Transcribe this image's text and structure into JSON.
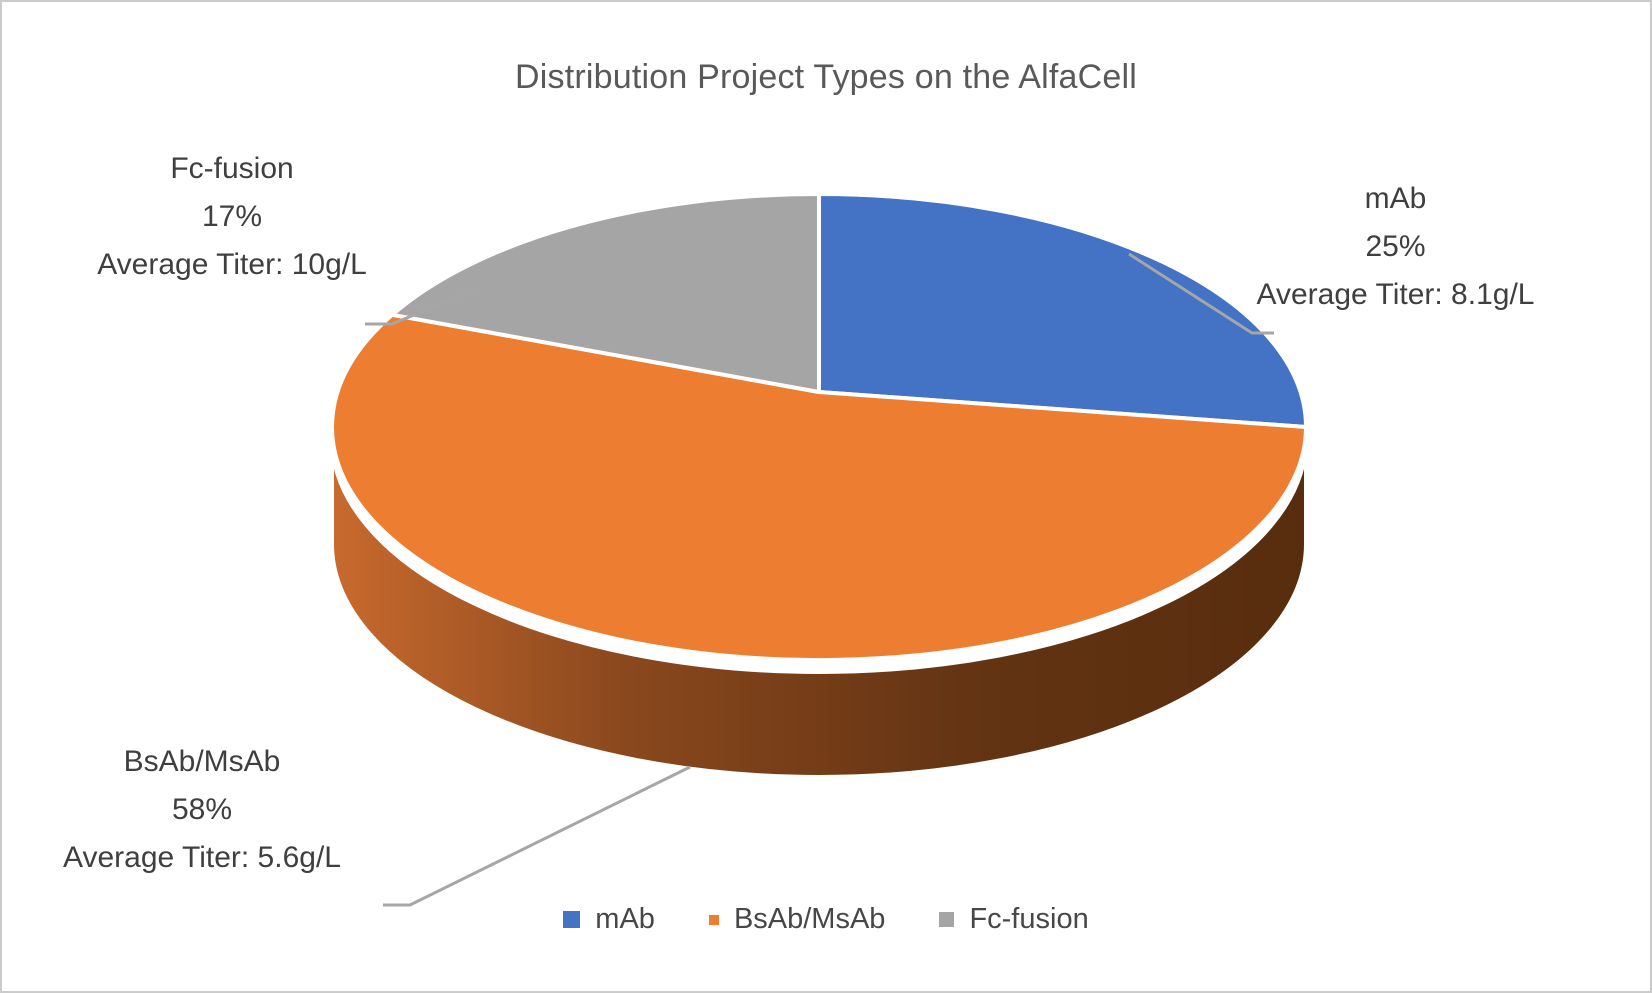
{
  "chart_data": {
    "type": "pie",
    "style": "3d",
    "title": "Distribution Project Types on the AlfaCell",
    "categories": [
      "mAb",
      "BsAb/MsAb",
      "Fc-fusion"
    ],
    "values": [
      25,
      58,
      17
    ],
    "units": "percent",
    "start_angle": "12 o'clock",
    "direction": "clockwise",
    "legend_position": "bottom",
    "series": [
      {
        "name": "mAb",
        "percent": 25,
        "percent_label": "25%",
        "titer_label": "Average Titer: 8.1g/L",
        "average_titer_g_per_L": 8.1,
        "color": "#4472C4"
      },
      {
        "name": "BsAb/MsAb",
        "percent": 58,
        "percent_label": "58%",
        "titer_label": "Average Titer: 5.6g/L",
        "average_titer_g_per_L": 5.6,
        "color": "#ED7D31"
      },
      {
        "name": "Fc-fusion",
        "percent": 17,
        "percent_label": "17%",
        "titer_label": "Average Titer: 10g/L",
        "average_titer_g_per_L": 10,
        "color": "#A5A5A5"
      }
    ],
    "side_gradient": [
      "#C86A2E",
      "#8A481D",
      "#643413",
      "#572D0E"
    ],
    "leader_line_color": "#A6A6A6"
  },
  "colors": {
    "title_text": "#595959",
    "label_text": "#3F3F3F",
    "legend_text": "#474747",
    "frame_border": "#CBCBCB",
    "background": "#FFFFFF",
    "slice_outline": "#FFFFFF"
  }
}
